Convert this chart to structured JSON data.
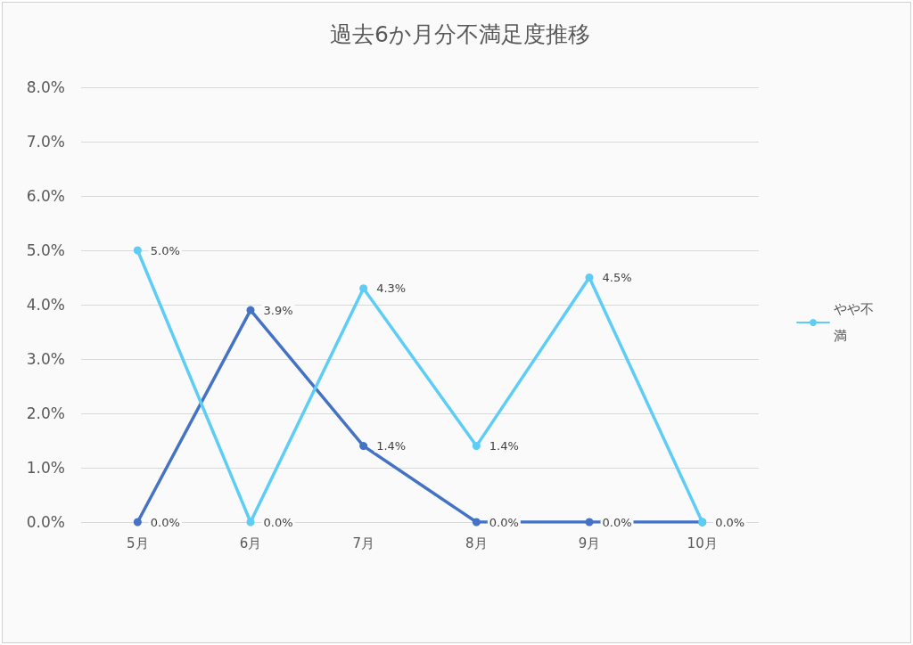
{
  "chart_data": {
    "type": "line",
    "title": "過去6か月分不満足度推移",
    "categories": [
      "5月",
      "6月",
      "7月",
      "8月",
      "9月",
      "10月"
    ],
    "series": [
      {
        "name": "やや不満",
        "color": "#5ecdf6",
        "values": [
          5.0,
          0,
          4.3,
          1.4,
          4.5,
          0
        ],
        "value_labels": [
          "5.0%",
          "0.0%",
          "4.3%",
          "1.4%",
          "4.5%",
          "0.0%"
        ]
      },
      {
        "color": "#4472c4",
        "values": [
          0,
          3.9,
          1.4,
          0,
          0,
          0
        ],
        "value_labels": [
          "0.0%",
          "3.9%",
          "1.4%",
          "0.0%",
          "0.0%",
          null
        ]
      }
    ],
    "ylim": [
      0,
      8
    ],
    "yticks": [
      {
        "value": 0,
        "label": "0.0%"
      },
      {
        "value": 1,
        "label": "1.0%"
      },
      {
        "value": 2,
        "label": "2.0%"
      },
      {
        "value": 3,
        "label": "3.0%"
      },
      {
        "value": 4,
        "label": "4.0%"
      },
      {
        "value": 5,
        "label": "5.0%"
      },
      {
        "value": 6,
        "label": "6.0%"
      },
      {
        "value": 7,
        "label": "7.0%"
      },
      {
        "value": 8,
        "label": "8.0%"
      }
    ],
    "grid": "y",
    "legend": "right",
    "marker": "circle",
    "line_style": "solid"
  }
}
